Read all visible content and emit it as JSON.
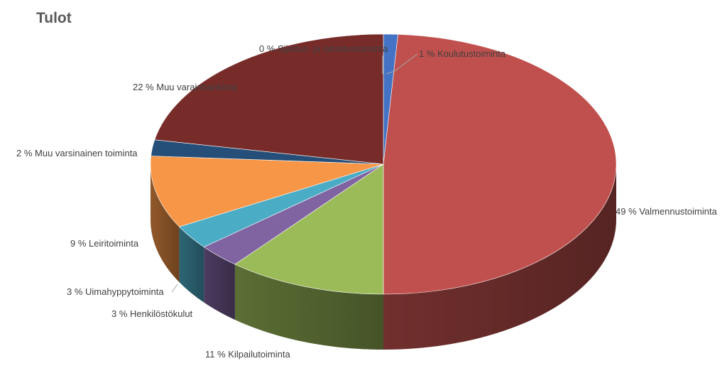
{
  "chart_data": {
    "type": "pie",
    "title": "Tulot",
    "slices": [
      {
        "label": "1 % Koulutustoiminta",
        "value": 1,
        "color": "#4472c4"
      },
      {
        "label": "49 % Valmennustoiminta",
        "value": 49,
        "color": "#c0504d"
      },
      {
        "label": "11 % Kilpailutoiminta",
        "value": 11,
        "color": "#9bbb59"
      },
      {
        "label": "3 % Henkilöstökulut",
        "value": 3,
        "color": "#8064a2"
      },
      {
        "label": "3 % Uimahyppytoiminta",
        "value": 3,
        "color": "#4bacc6"
      },
      {
        "label": "9 % Leiritoiminta",
        "value": 9,
        "color": "#f79646"
      },
      {
        "label": "2 % Muu varsinainen toiminta",
        "value": 2,
        "color": "#254e78"
      },
      {
        "label": "22 % Muu varainhankinta",
        "value": 22,
        "color": "#772c2a"
      },
      {
        "label": "0 % Sijoitus- ja rahoitustoiminta",
        "value": 0,
        "color": "#5f7530"
      }
    ]
  }
}
